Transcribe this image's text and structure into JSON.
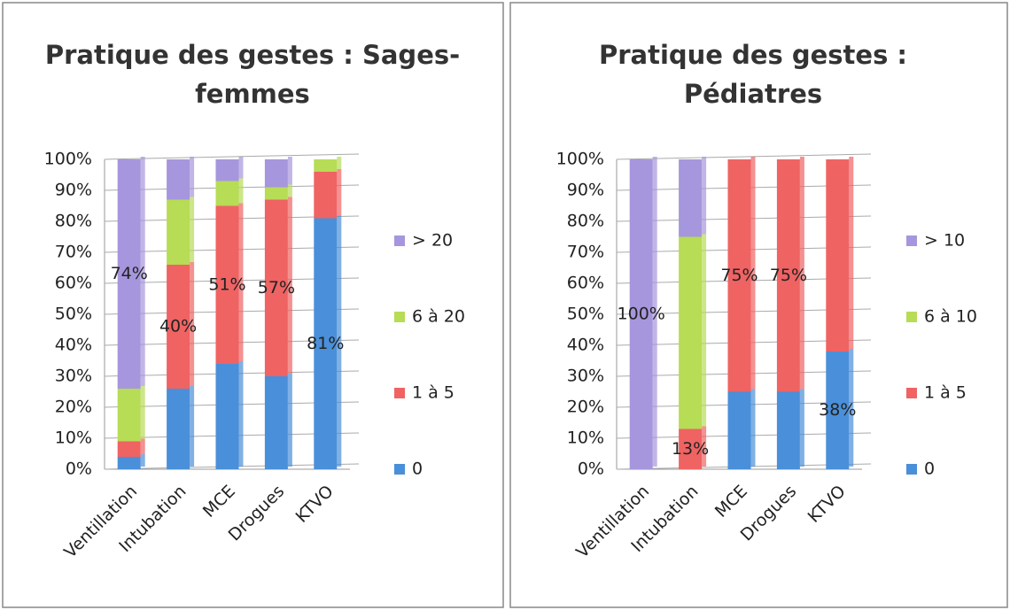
{
  "chart_data": [
    {
      "type": "stacked_bar",
      "title": "Pratique des gestes : Sages-femmes",
      "categories": [
        "Ventillation",
        "Intubation",
        "MCE",
        "Drogues",
        "KTVO"
      ],
      "series": [
        {
          "name": "0",
          "color": "#4a8fd9",
          "values": [
            4,
            26,
            34,
            30,
            81
          ],
          "value_labels": [
            null,
            null,
            null,
            null,
            "81%"
          ]
        },
        {
          "name": "1 à 5",
          "color": "#ef6363",
          "values": [
            5,
            40,
            51,
            57,
            15
          ],
          "value_labels": [
            null,
            "40%",
            "51%",
            "57%",
            null
          ]
        },
        {
          "name": "6 à 20",
          "color": "#b7dc55",
          "values": [
            17,
            21,
            8,
            4,
            4
          ],
          "value_labels": [
            null,
            null,
            null,
            null,
            null
          ]
        },
        {
          "name": "> 20",
          "color": "#a696dd",
          "values": [
            74,
            13,
            7,
            9,
            0
          ],
          "value_labels": [
            "74%",
            null,
            null,
            null,
            null
          ]
        }
      ],
      "ylim": [
        0,
        100
      ],
      "yticks": [
        {
          "value": 0,
          "label": "0%"
        },
        {
          "value": 10,
          "label": "10%"
        },
        {
          "value": 20,
          "label": "20%"
        },
        {
          "value": 30,
          "label": "30%"
        },
        {
          "value": 40,
          "label": "40%"
        },
        {
          "value": 50,
          "label": "50%"
        },
        {
          "value": 60,
          "label": "60%"
        },
        {
          "value": 70,
          "label": "70%"
        },
        {
          "value": 80,
          "label": "80%"
        },
        {
          "value": 90,
          "label": "90%"
        },
        {
          "value": 100,
          "label": "100%"
        }
      ],
      "legend": "right"
    },
    {
      "type": "stacked_bar",
      "title": "Pratique des gestes : Pédiatres",
      "categories": [
        "Ventillation",
        "Intubation",
        "MCE",
        "Drogues",
        "KTVO"
      ],
      "series": [
        {
          "name": "0",
          "color": "#4a8fd9",
          "values": [
            0,
            0,
            25,
            25,
            38
          ],
          "value_labels": [
            null,
            null,
            null,
            null,
            "38%"
          ]
        },
        {
          "name": "1 à 5",
          "color": "#ef6363",
          "values": [
            0,
            13,
            75,
            75,
            62
          ],
          "value_labels": [
            null,
            "13%",
            "75%",
            "75%",
            null
          ]
        },
        {
          "name": "6 à 10",
          "color": "#b7dc55",
          "values": [
            0,
            62,
            0,
            0,
            0
          ],
          "value_labels": [
            null,
            null,
            null,
            null,
            null
          ]
        },
        {
          "name": "> 10",
          "color": "#a696dd",
          "values": [
            100,
            25,
            0,
            0,
            0
          ],
          "value_labels": [
            "100%",
            null,
            null,
            null,
            null
          ]
        }
      ],
      "ylim": [
        0,
        100
      ],
      "yticks": [
        {
          "value": 0,
          "label": "0%"
        },
        {
          "value": 10,
          "label": "10%"
        },
        {
          "value": 20,
          "label": "20%"
        },
        {
          "value": 30,
          "label": "30%"
        },
        {
          "value": 40,
          "label": "40%"
        },
        {
          "value": 50,
          "label": "50%"
        },
        {
          "value": 60,
          "label": "60%"
        },
        {
          "value": 70,
          "label": "70%"
        },
        {
          "value": 80,
          "label": "80%"
        },
        {
          "value": 90,
          "label": "90%"
        },
        {
          "value": 100,
          "label": "100%"
        }
      ],
      "legend": "right"
    }
  ]
}
